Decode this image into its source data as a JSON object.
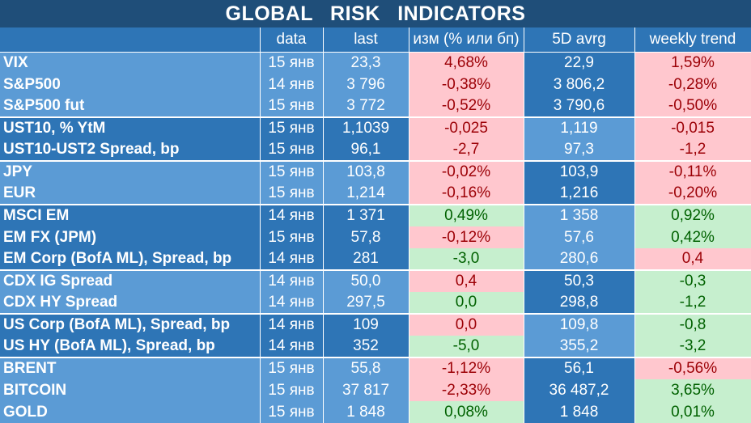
{
  "title": "GLOBAL   RISK   INDICATORS",
  "headers": [
    "",
    "data",
    "last",
    "изм (% или бп)",
    "5D avrg",
    "weekly trend"
  ],
  "rows": [
    {
      "name": "VIX",
      "date": "15 янв",
      "last": "23,3",
      "chg": "4,68%",
      "chg_dir": "neg",
      "avg": "22,9",
      "trend": "1,59%",
      "trend_dir": "neg",
      "group": 0
    },
    {
      "name": "S&P500",
      "date": "14 янв",
      "last": "3 796",
      "chg": "-0,38%",
      "chg_dir": "neg",
      "avg": "3 806,2",
      "trend": "-0,28%",
      "trend_dir": "neg",
      "group": 0
    },
    {
      "name": "S&P500 fut",
      "date": "15 янв",
      "last": "3 772",
      "chg": "-0,52%",
      "chg_dir": "neg",
      "avg": "3 790,6",
      "trend": "-0,50%",
      "trend_dir": "neg",
      "group": 0
    },
    {
      "name": "UST10, % YtM",
      "date": "15 янв",
      "last": "1,1039",
      "chg": "-0,025",
      "chg_dir": "neg",
      "avg": "1,119",
      "trend": "-0,015",
      "trend_dir": "neg",
      "group": 1
    },
    {
      "name": "UST10-UST2 Spread, bp",
      "date": "15 янв",
      "last": "96,1",
      "chg": "-2,7",
      "chg_dir": "neg",
      "avg": "97,3",
      "trend": "-1,2",
      "trend_dir": "neg",
      "group": 1
    },
    {
      "name": "JPY",
      "date": "15 янв",
      "last": "103,8",
      "chg": "-0,02%",
      "chg_dir": "neg",
      "avg": "103,9",
      "trend": "-0,11%",
      "trend_dir": "neg",
      "group": 2
    },
    {
      "name": "EUR",
      "date": "15 янв",
      "last": "1,214",
      "chg": "-0,16%",
      "chg_dir": "neg",
      "avg": "1,216",
      "trend": "-0,20%",
      "trend_dir": "neg",
      "group": 2
    },
    {
      "name": "MSCI EM",
      "date": "14 янв",
      "last": "1 371",
      "chg": "0,49%",
      "chg_dir": "pos",
      "avg": "1 358",
      "trend": "0,92%",
      "trend_dir": "pos",
      "group": 3
    },
    {
      "name": "EM FX (JPM)",
      "date": "15 янв",
      "last": "57,8",
      "chg": "-0,12%",
      "chg_dir": "neg",
      "avg": "57,6",
      "trend": "0,42%",
      "trend_dir": "pos",
      "group": 3
    },
    {
      "name": "EM Corp (BofA ML), Spread, bp",
      "date": "14 янв",
      "last": "281",
      "chg": "-3,0",
      "chg_dir": "pos",
      "avg": "280,6",
      "trend": "0,4",
      "trend_dir": "neg",
      "group": 3
    },
    {
      "name": "CDX IG Spread",
      "date": "14 янв",
      "last": "50,0",
      "chg": "0,4",
      "chg_dir": "neg",
      "avg": "50,3",
      "trend": "-0,3",
      "trend_dir": "pos",
      "group": 4
    },
    {
      "name": "CDX HY Spread",
      "date": "14 янв",
      "last": "297,5",
      "chg": "0,0",
      "chg_dir": "pos",
      "avg": "298,8",
      "trend": "-1,2",
      "trend_dir": "pos",
      "group": 4
    },
    {
      "name": "US Corp (BofA ML), Spread, bp",
      "date": "14 янв",
      "last": "109",
      "chg": "0,0",
      "chg_dir": "neg",
      "avg": "109,8",
      "trend": "-0,8",
      "trend_dir": "pos",
      "group": 5
    },
    {
      "name": "US HY (BofA ML), Spread, bp",
      "date": "14 янв",
      "last": "352",
      "chg": "-5,0",
      "chg_dir": "pos",
      "avg": "355,2",
      "trend": "-3,2",
      "trend_dir": "pos",
      "group": 5
    },
    {
      "name": "BRENT",
      "date": "15 янв",
      "last": "55,8",
      "chg": "-1,12%",
      "chg_dir": "neg",
      "avg": "56,1",
      "trend": "-0,56%",
      "trend_dir": "neg",
      "group": 6
    },
    {
      "name": "BITCOIN",
      "date": "15 янв",
      "last": "37 817",
      "chg": "-2,33%",
      "chg_dir": "neg",
      "avg": "36 487,2",
      "trend": "3,65%",
      "trend_dir": "pos",
      "group": 6
    },
    {
      "name": "GOLD",
      "date": "15 янв",
      "last": "1 848",
      "chg": "0,08%",
      "chg_dir": "pos",
      "avg": "1 848",
      "trend": "0,01%",
      "trend_dir": "pos",
      "group": 6
    }
  ]
}
